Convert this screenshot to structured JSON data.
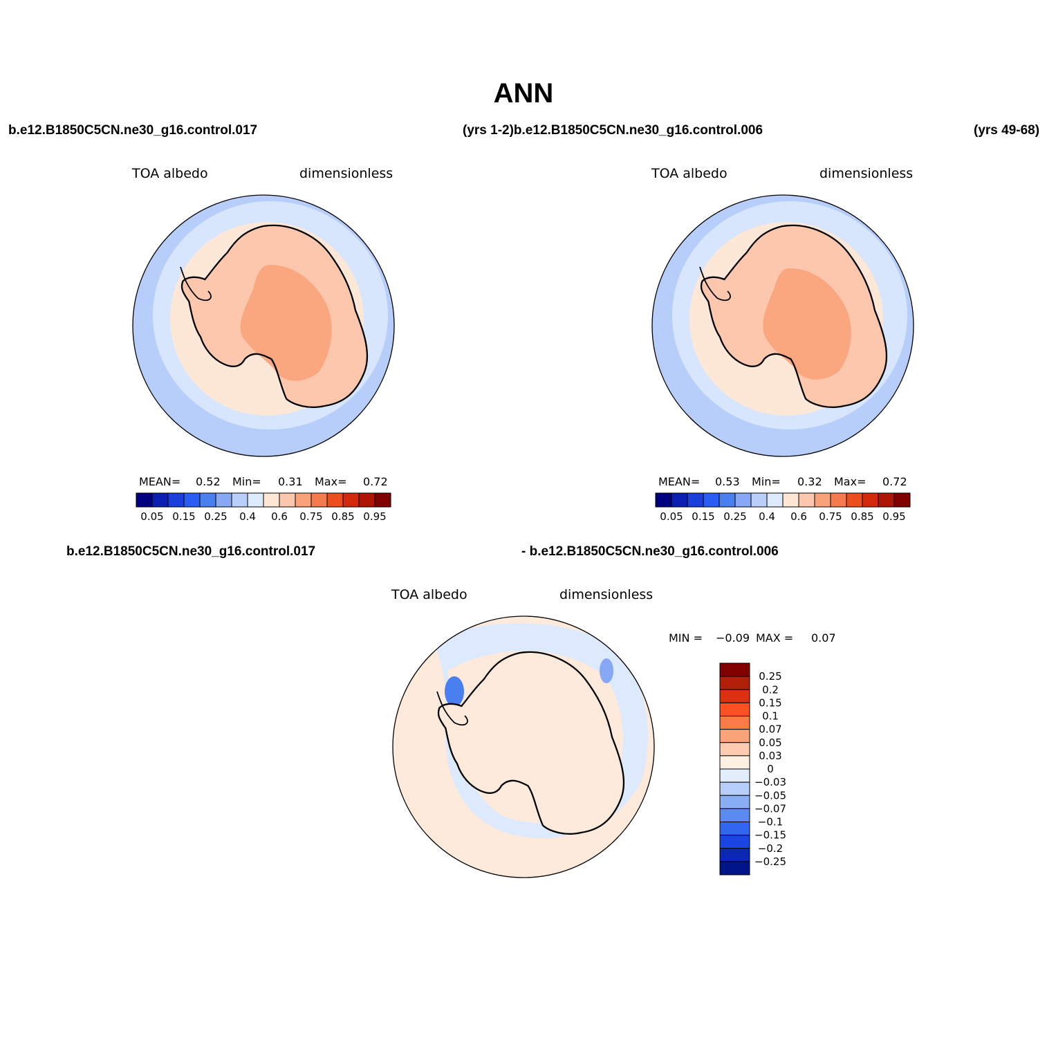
{
  "title": "ANN",
  "row1": {
    "left_case": "b.e12.B1850C5CN.ne30_g16.control.017",
    "middle_case": "(yrs 1-2)b.e12.B1850C5CN.ne30_g16.control.006",
    "right_case": "(yrs 49-68)"
  },
  "row2": {
    "left_case": "b.e12.B1850C5CN.ne30_g16.control.017",
    "right_case": "- b.e12.B1850C5CN.ne30_g16.control.006"
  },
  "panels": [
    {
      "variable": "TOA albedo",
      "units": "dimensionless",
      "stats": {
        "mean_label": "MEAN=",
        "mean": "0.52",
        "min_label": "Min=",
        "min": "0.31",
        "max_label": "Max=",
        "max": "0.72"
      }
    },
    {
      "variable": "TOA albedo",
      "units": "dimensionless",
      "stats": {
        "mean_label": "MEAN=",
        "mean": "0.53",
        "min_label": "Min=",
        "min": "0.32",
        "max_label": "Max=",
        "max": "0.72"
      }
    },
    {
      "variable": "TOA albedo",
      "units": "dimensionless",
      "stats": {
        "min_label": "MIN =",
        "min": "−0.09",
        "max_label": "MAX =",
        "max": "0.07"
      }
    }
  ],
  "colorbar_abs": {
    "colors": [
      "#000080",
      "#0b1fb0",
      "#1a3fdb",
      "#2a5ef2",
      "#4a7ff0",
      "#86a8f5",
      "#b9cffa",
      "#dde9fd",
      "#fee6d4",
      "#fcc7ad",
      "#f9a27a",
      "#f57a4e",
      "#ec4f1e",
      "#d22b0c",
      "#ad1605",
      "#800000"
    ],
    "labels": [
      "0.05",
      "0.15",
      "0.25",
      "0.4",
      "0.6",
      "0.75",
      "0.85",
      "0.95"
    ]
  },
  "colorbar_diff": {
    "colors": [
      "#800000",
      "#b2200a",
      "#dc3010",
      "#fb5022",
      "#fb7a48",
      "#fba47a",
      "#fecbb0",
      "#fff0e2",
      "#e3eefb",
      "#b7cdfa",
      "#8aaef5",
      "#5b8af0",
      "#3066f0",
      "#1a45e0",
      "#0a28b4",
      "#00148a"
    ],
    "labels": [
      "0.25",
      "0.2",
      "0.15",
      "0.1",
      "0.07",
      "0.05",
      "0.03",
      "0",
      "−0.03",
      "−0.05",
      "−0.07",
      "−0.1",
      "−0.15",
      "−0.2",
      "−0.25"
    ]
  }
}
